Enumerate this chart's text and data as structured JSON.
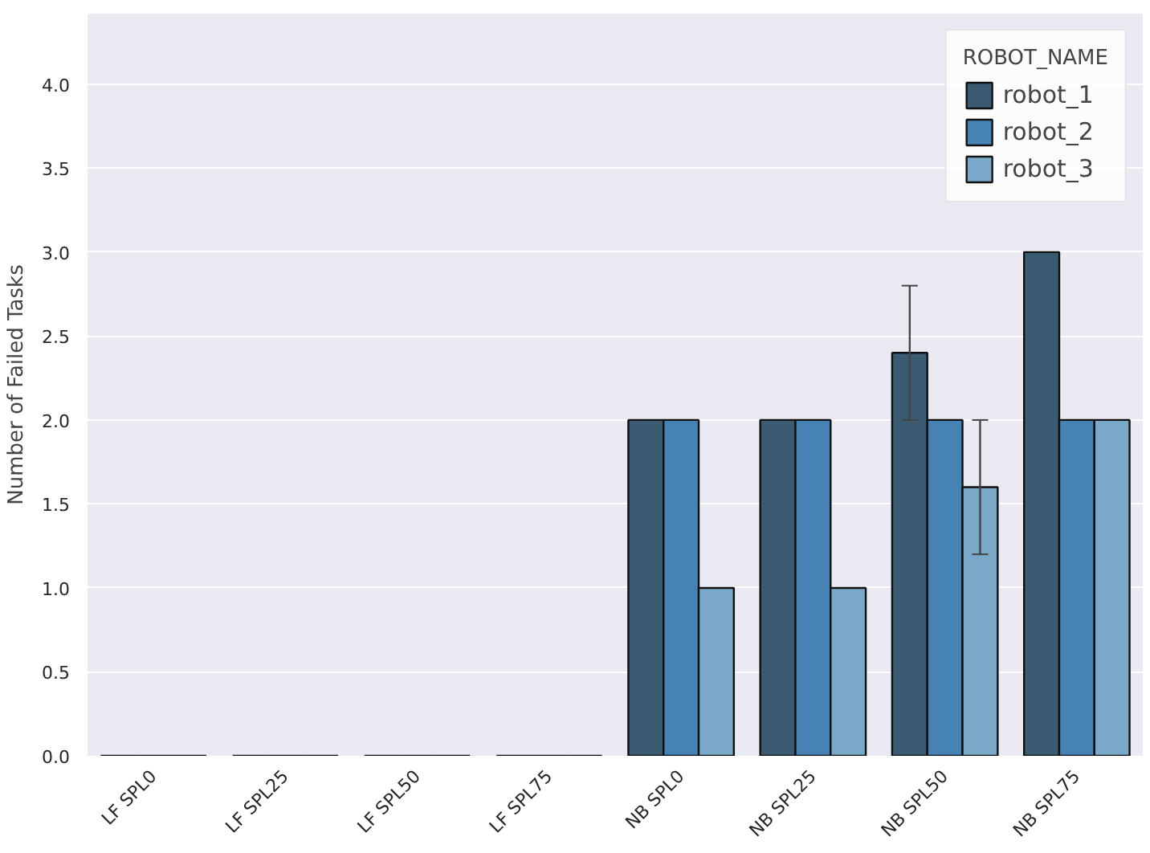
{
  "chart_data": {
    "type": "bar",
    "ylabel": "Number of Failed Tasks",
    "legend_title": "ROBOT_NAME",
    "categories": [
      "LF SPL0",
      "LF SPL25",
      "LF SPL50",
      "LF SPL75",
      "NB SPL0",
      "NB SPL25",
      "NB SPL50",
      "NB SPL75"
    ],
    "series": [
      {
        "name": "robot_1",
        "color": "#3b5b73",
        "values": [
          0,
          0,
          0,
          0,
          2,
          2,
          2.4,
          3
        ],
        "errors": [
          null,
          null,
          null,
          null,
          null,
          null,
          [
            2.0,
            2.8
          ],
          null
        ]
      },
      {
        "name": "robot_2",
        "color": "#4682b4",
        "values": [
          0,
          0,
          0,
          0,
          2,
          2,
          2,
          2
        ]
      },
      {
        "name": "robot_3",
        "color": "#7aa8c9",
        "values": [
          0,
          0,
          0,
          0,
          1,
          1,
          1.6,
          2
        ],
        "errors": [
          null,
          null,
          null,
          null,
          null,
          null,
          [
            1.2,
            2.0
          ],
          null
        ]
      }
    ],
    "ylim": [
      0,
      4.42
    ],
    "yticks": [
      {
        "value": 0,
        "label": "0.0"
      },
      0.5,
      {
        "value": 1,
        "label": "1.0"
      },
      1.5,
      {
        "value": 2,
        "label": "2.0"
      },
      2.5,
      {
        "value": 3,
        "label": "3.0"
      },
      3.5,
      {
        "value": 4,
        "label": "4.0"
      }
    ],
    "grid": "y",
    "legend": "top right"
  }
}
